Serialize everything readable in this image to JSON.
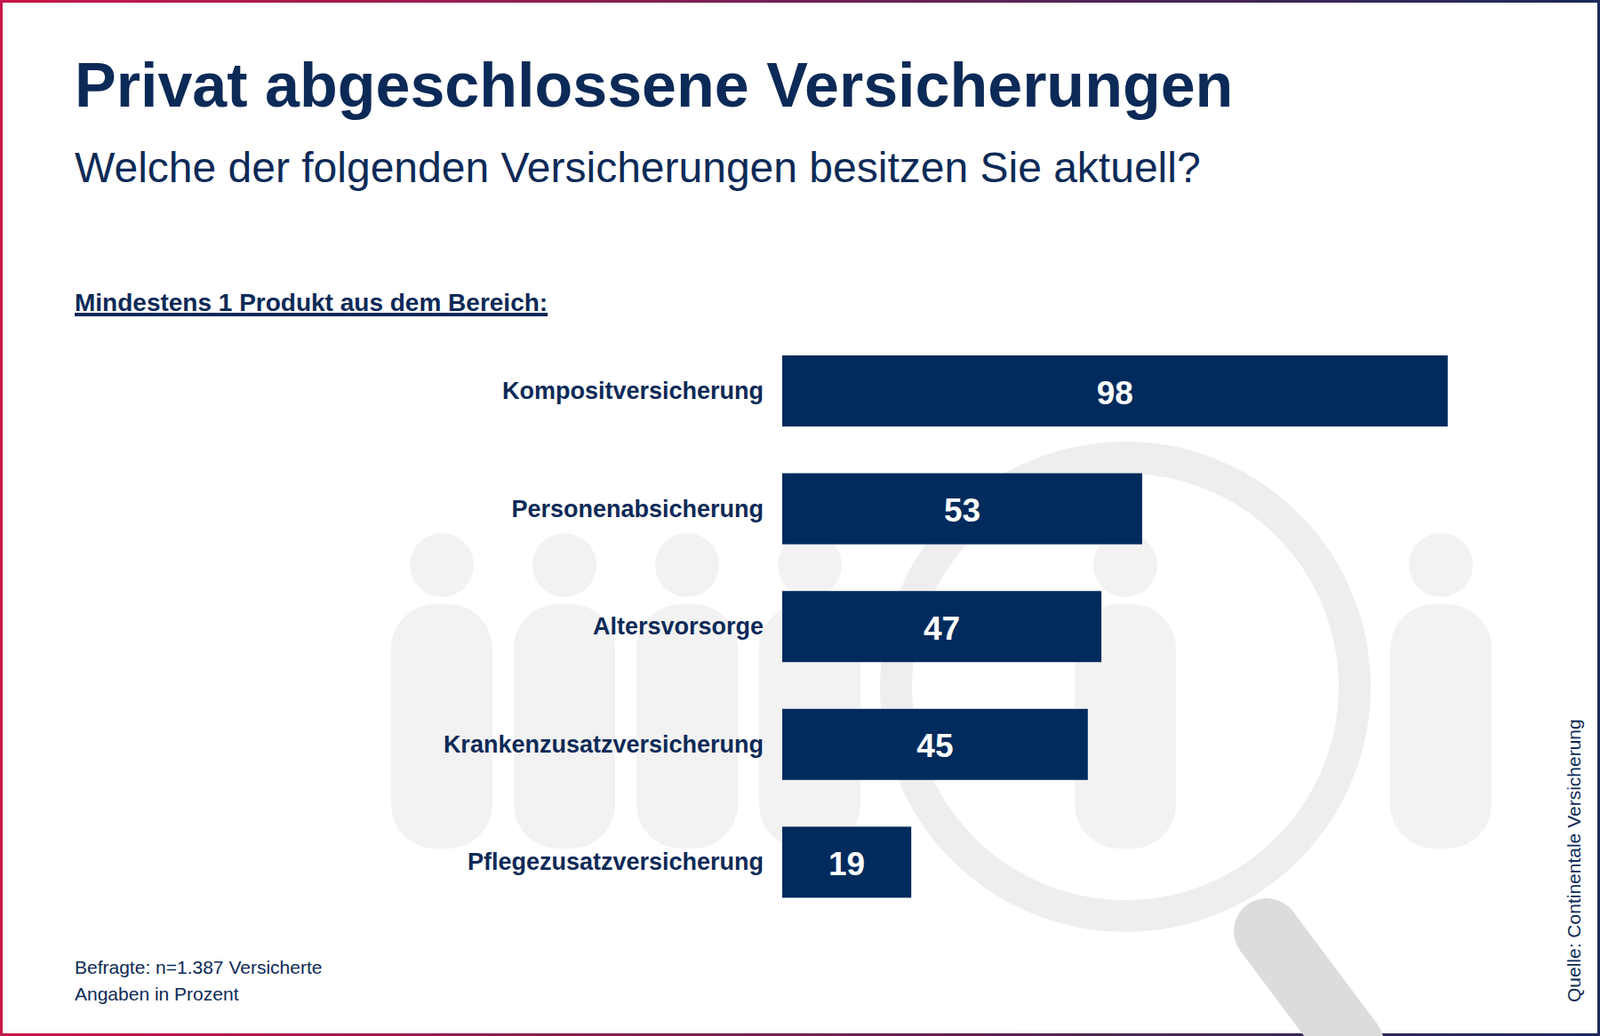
{
  "chart_data": {
    "type": "bar",
    "orientation": "horizontal",
    "title": "Privat abgeschlossene Versicherungen",
    "subtitle": "Welche der folgenden Versicherungen besitzen Sie aktuell?",
    "group_label": "Mindestens 1 Produkt aus dem Bereich:",
    "categories": [
      "Kompositversicherung",
      "Personenabsicherung",
      "Altersvorsorge",
      "Krankenzusatzversicherung",
      "Pflegezusatzversicherung"
    ],
    "values": [
      98,
      53,
      47,
      45,
      19
    ],
    "color": "#002b5c",
    "xlim": [
      0,
      100
    ],
    "data_labels": true,
    "tick_labels": false,
    "grid": false,
    "notes": [
      "Befragte: n=1.387 Versicherte",
      "Angaben in Prozent"
    ],
    "source": "Quelle: Continentale Versicherung"
  }
}
